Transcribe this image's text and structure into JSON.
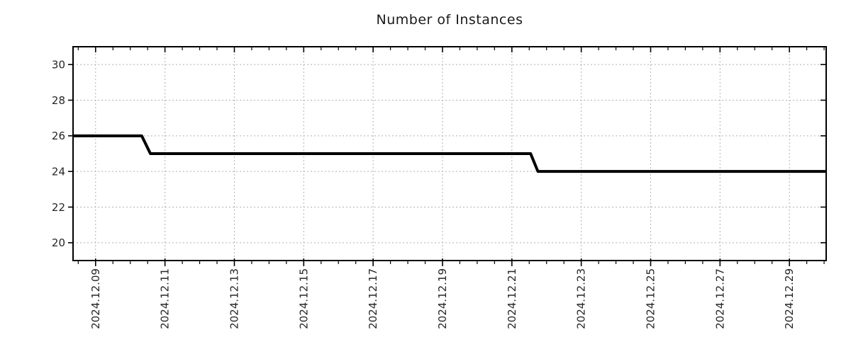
{
  "title": "Number of Instances",
  "colors": {
    "background": "#ffffff",
    "frame": "#000000",
    "grid": "#b0b0b0",
    "line": "#000000",
    "text": "#262626"
  },
  "chart_data": {
    "type": "line",
    "step": true,
    "title": "Number of Instances",
    "legend": false,
    "grid": {
      "show": true,
      "dash": "2 3"
    },
    "series": [
      {
        "name": "instances",
        "color": "#000000",
        "line_width": 4,
        "points": [
          {
            "date": "2024-12-08 08:00",
            "t": 8.35,
            "value": 26
          },
          {
            "date": "2024-12-10 08:00",
            "t": 10.33,
            "value": 26
          },
          {
            "date": "2024-12-10 14:00",
            "t": 10.58,
            "value": 25
          },
          {
            "date": "2024-12-21 13:00",
            "t": 21.54,
            "value": 25
          },
          {
            "date": "2024-12-21 18:00",
            "t": 21.75,
            "value": 24
          },
          {
            "date": "2024-12-30 01:30",
            "t": 30.06,
            "value": 24
          }
        ]
      }
    ],
    "x_axis": {
      "domain_days": [
        8.35,
        30.06
      ],
      "tick_days": [
        9,
        11,
        13,
        15,
        17,
        19,
        21,
        23,
        25,
        27,
        29
      ],
      "tick_labels": [
        "2024.12.09",
        "2024.12.11",
        "2024.12.13",
        "2024.12.15",
        "2024.12.17",
        "2024.12.19",
        "2024.12.21",
        "2024.12.23",
        "2024.12.25",
        "2024.12.27",
        "2024.12.29"
      ],
      "minor_step_days": 0.5,
      "label_rotation_deg": 90
    },
    "y_axis": {
      "lim": [
        19,
        31
      ],
      "ticks": [
        20,
        22,
        24,
        26,
        28,
        30
      ],
      "tick_labels": [
        "20",
        "22",
        "24",
        "26",
        "28",
        "30"
      ]
    }
  }
}
